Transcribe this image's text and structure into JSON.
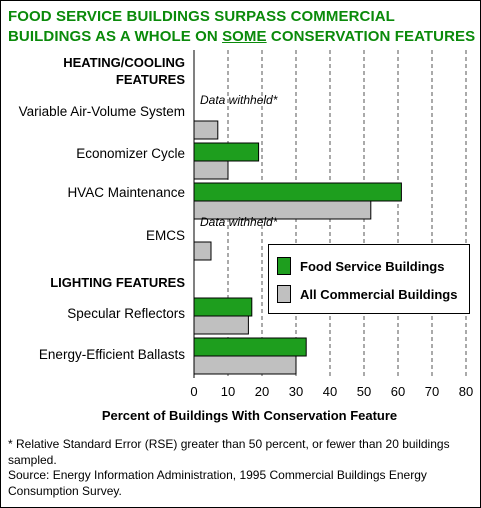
{
  "title_line1": "FOOD SERVICE BUILDINGS SURPASS COMMERCIAL",
  "title_line2_pre": "BUILDINGS AS A WHOLE ON ",
  "title_line2_emph": "SOME",
  "title_line2_post": " CONSERVATION FEATURES",
  "colors": {
    "food": "#1e9e1e",
    "all": "#c0c0c0",
    "title": "#0a8a0a"
  },
  "chart_data": {
    "type": "bar",
    "orientation": "horizontal",
    "sections": [
      {
        "label_line1": "HEATING/COOLING",
        "label_line2": "FEATURES"
      },
      {
        "label_line1": "LIGHTING FEATURES"
      }
    ],
    "categories": [
      "Variable Air-Volume System",
      "Economizer Cycle",
      "HVAC Maintenance",
      "EMCS",
      "Specular Reflectors",
      "Energy-Efficient Ballasts"
    ],
    "series": [
      {
        "name": "Food Service Buildings",
        "values": [
          null,
          19,
          61,
          null,
          17,
          33
        ]
      },
      {
        "name": "All Commercial Buildings",
        "values": [
          7,
          10,
          52,
          5,
          16,
          30
        ]
      }
    ],
    "annotations": [
      "Data withheld*",
      "Data withheld*"
    ],
    "xlabel": "Percent of Buildings With Conservation Feature",
    "xlim": [
      0,
      80
    ],
    "xticks": [
      "0",
      "10",
      "20",
      "30",
      "40",
      "50",
      "60",
      "70",
      "80"
    ],
    "grid": "vertical dashed",
    "legend_position": "right-middle"
  },
  "footnote": "* Relative Standard Error (RSE) greater than 50 percent, or fewer than 20 buildings sampled.",
  "source": "Source:  Energy Information Administration, 1995 Commercial Buildings Energy Consumption Survey."
}
